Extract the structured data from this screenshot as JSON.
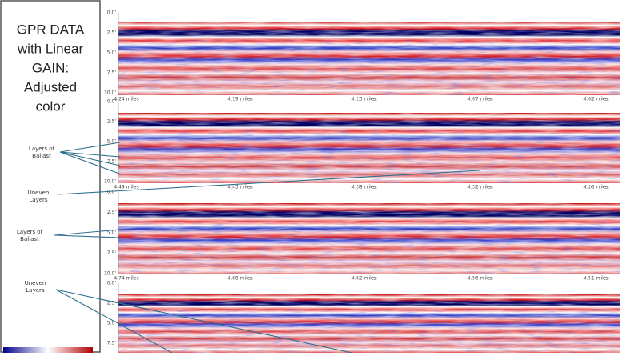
{
  "title_lines": [
    "GPR DATA",
    "with Linear",
    "GAIN:",
    "Adjusted",
    "color"
  ],
  "annotations": [
    {
      "lines": [
        "Layers of",
        "Ballast"
      ]
    },
    {
      "lines": [
        "Uneven",
        "Layers"
      ]
    },
    {
      "lines": [
        "Layers of",
        "Ballast"
      ]
    },
    {
      "lines": [
        "Uneven",
        "Layers"
      ]
    }
  ],
  "panels": [
    {
      "depth_ticks": [
        "0.0'",
        "2.5'",
        "5.0'",
        "7.5'",
        "10.0'"
      ],
      "mile_labels": [
        "4.24 miles",
        "4.19 miles",
        "4.13 miles",
        "4.07 miles",
        "4.02 miles"
      ]
    },
    {
      "depth_ticks": [
        "0.0'",
        "2.5'",
        "5.0'",
        "7.5'",
        "10.0'"
      ],
      "mile_labels": [
        "4.49 miles",
        "4.43 miles",
        "4.38 miles",
        "4.32 miles",
        "4.26 miles"
      ]
    },
    {
      "depth_ticks": [
        "0.0'",
        "2.5'",
        "5.0'",
        "7.5'",
        "10.0'"
      ],
      "mile_labels": [
        "4.74 miles",
        "4.68 miles",
        "4.62 miles",
        "4.56 miles",
        "4.51 miles"
      ]
    },
    {
      "depth_ticks": [
        "0.0'",
        "2.5'",
        "5.0'",
        "7.5'"
      ],
      "mile_labels": []
    }
  ]
}
